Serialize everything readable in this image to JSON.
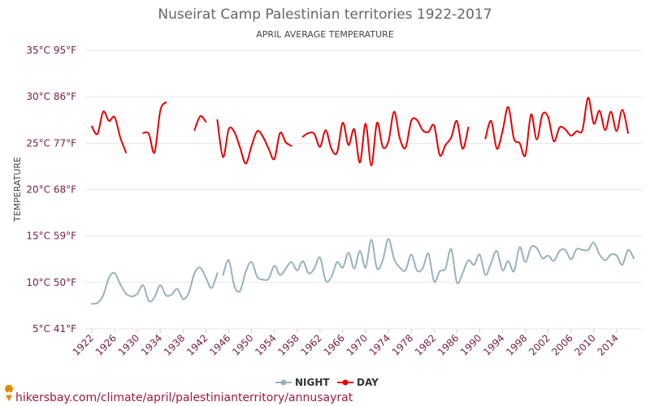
{
  "page": {
    "watermark": "hikersbay.com/climate/april/palestinianterritory/annusayrat"
  },
  "colors": {
    "day": "#e60000",
    "night": "#97b2bd",
    "grid": "#e6e6e6",
    "text": "#666666",
    "axis_label": "#7a2040",
    "watermark": "#a01a3c",
    "pin": "#e68a00"
  },
  "chart_data": {
    "type": "line",
    "title": "Nuseirat Camp Palestinian territories 1922-2017",
    "subtitle": "APRIL AVERAGE TEMPERATURE",
    "ylabel": "TEMPERATURE",
    "xlabel": "",
    "x_range": [
      1921,
      2018
    ],
    "ylim": [
      5,
      35
    ],
    "grid": true,
    "legend_position": "bottom-center",
    "y_ticks": [
      {
        "value": 5,
        "label": "5°C 41°F"
      },
      {
        "value": 10,
        "label": "10°C 50°F"
      },
      {
        "value": 15,
        "label": "15°C 59°F"
      },
      {
        "value": 20,
        "label": "20°C 68°F"
      },
      {
        "value": 25,
        "label": "25°C 77°F"
      },
      {
        "value": 30,
        "label": "30°C 86°F"
      },
      {
        "value": 35,
        "label": "35°C 95°F"
      }
    ],
    "x_ticks": [
      "1922",
      "1926",
      "1930",
      "1934",
      "1938",
      "1942",
      "1946",
      "1950",
      "1954",
      "1958",
      "1962",
      "1966",
      "1970",
      "1974",
      "1978",
      "1982",
      "1986",
      "1990",
      "1994",
      "1998",
      "2002",
      "2006",
      "2010",
      "2014"
    ],
    "x_tick_values": [
      1922,
      1926,
      1930,
      1934,
      1938,
      1942,
      1946,
      1950,
      1954,
      1958,
      1962,
      1966,
      1970,
      1974,
      1978,
      1982,
      1986,
      1990,
      1994,
      1998,
      2002,
      2006,
      2010,
      2014
    ],
    "series": [
      {
        "name": "NIGHT",
        "key": "night",
        "points": [
          [
            1922,
            7.7
          ],
          [
            1923,
            7.8
          ],
          [
            1924,
            8.6
          ],
          [
            1925,
            10.5
          ],
          [
            1926,
            11.0
          ],
          [
            1927,
            9.8
          ],
          [
            1928,
            8.8
          ],
          [
            1929,
            8.5
          ],
          [
            1930,
            8.8
          ],
          [
            1931,
            9.7
          ],
          [
            1932,
            8.0
          ],
          [
            1933,
            8.4
          ],
          [
            1934,
            9.7
          ],
          [
            1935,
            8.6
          ],
          [
            1936,
            8.7
          ],
          [
            1937,
            9.3
          ],
          [
            1938,
            8.2
          ],
          [
            1939,
            8.9
          ],
          [
            1940,
            11.0
          ],
          [
            1941,
            11.6
          ],
          [
            1942,
            10.5
          ],
          [
            1943,
            9.4
          ],
          [
            1944,
            11.0
          ],
          null,
          [
            1945,
            10.8
          ],
          [
            1946,
            12.4
          ],
          [
            1947,
            9.6
          ],
          [
            1948,
            9.1
          ],
          [
            1949,
            11.2
          ],
          [
            1950,
            12.2
          ],
          [
            1951,
            10.6
          ],
          [
            1952,
            10.3
          ],
          [
            1953,
            10.4
          ],
          [
            1954,
            11.8
          ],
          [
            1955,
            10.8
          ],
          [
            1956,
            11.5
          ],
          [
            1957,
            12.2
          ],
          [
            1958,
            11.3
          ],
          [
            1959,
            12.3
          ],
          [
            1960,
            11.0
          ],
          [
            1961,
            11.5
          ],
          [
            1962,
            12.7
          ],
          [
            1963,
            10.2
          ],
          [
            1964,
            10.6
          ],
          [
            1965,
            12.2
          ],
          [
            1966,
            11.6
          ],
          [
            1967,
            13.2
          ],
          [
            1968,
            11.5
          ],
          [
            1969,
            13.4
          ],
          [
            1970,
            11.6
          ],
          [
            1971,
            14.6
          ],
          [
            1972,
            11.5
          ],
          [
            1973,
            12.4
          ],
          [
            1974,
            14.7
          ],
          [
            1975,
            12.5
          ],
          [
            1976,
            11.6
          ],
          [
            1977,
            11.3
          ],
          [
            1978,
            13.0
          ],
          [
            1979,
            11.3
          ],
          [
            1980,
            11.5
          ],
          [
            1981,
            13.1
          ],
          [
            1982,
            10.1
          ],
          [
            1983,
            11.2
          ],
          [
            1984,
            11.5
          ],
          [
            1985,
            13.6
          ],
          [
            1986,
            10.0
          ],
          [
            1987,
            11.0
          ],
          [
            1988,
            12.4
          ],
          [
            1989,
            11.9
          ],
          [
            1990,
            13.0
          ],
          [
            1991,
            10.8
          ],
          [
            1992,
            12.1
          ],
          [
            1993,
            13.4
          ],
          [
            1994,
            11.3
          ],
          [
            1995,
            12.3
          ],
          [
            1996,
            11.2
          ],
          [
            1997,
            13.8
          ],
          [
            1998,
            12.2
          ],
          [
            1999,
            13.8
          ],
          [
            2000,
            13.7
          ],
          [
            2001,
            12.6
          ],
          [
            2002,
            12.9
          ],
          [
            2003,
            12.3
          ],
          [
            2004,
            13.4
          ],
          [
            2005,
            13.5
          ],
          [
            2006,
            12.5
          ],
          [
            2007,
            13.6
          ],
          [
            2008,
            13.5
          ],
          [
            2009,
            13.5
          ],
          [
            2010,
            14.3
          ],
          [
            2011,
            13.0
          ],
          [
            2012,
            12.4
          ],
          [
            2013,
            13.0
          ],
          [
            2014,
            12.9
          ],
          [
            2015,
            11.9
          ],
          [
            2016,
            13.5
          ],
          [
            2017,
            12.6
          ]
        ]
      },
      {
        "name": "DAY",
        "key": "day",
        "points": [
          [
            1922,
            26.8
          ],
          [
            1923,
            26.0
          ],
          [
            1924,
            28.4
          ],
          [
            1925,
            27.4
          ],
          [
            1926,
            27.8
          ],
          [
            1927,
            25.6
          ],
          [
            1928,
            24.0
          ],
          null,
          [
            1931,
            26.1
          ],
          [
            1932,
            26.0
          ],
          [
            1933,
            24.0
          ],
          [
            1934,
            28.5
          ],
          [
            1935,
            29.4
          ],
          null,
          [
            1940,
            26.4
          ],
          [
            1941,
            27.9
          ],
          [
            1942,
            27.3
          ],
          null,
          [
            1944,
            27.5
          ],
          [
            1945,
            23.5
          ],
          [
            1946,
            26.5
          ],
          [
            1947,
            26.2
          ],
          [
            1948,
            24.5
          ],
          [
            1949,
            22.8
          ],
          [
            1950,
            24.7
          ],
          [
            1951,
            26.3
          ],
          [
            1952,
            25.7
          ],
          [
            1953,
            24.4
          ],
          [
            1954,
            23.3
          ],
          [
            1955,
            26.1
          ],
          [
            1956,
            25.1
          ],
          [
            1957,
            24.7
          ],
          null,
          [
            1959,
            25.7
          ],
          [
            1960,
            26.1
          ],
          [
            1961,
            26.0
          ],
          [
            1962,
            24.6
          ],
          [
            1963,
            26.4
          ],
          [
            1964,
            24.4
          ],
          [
            1965,
            24.0
          ],
          [
            1966,
            27.2
          ],
          [
            1967,
            24.8
          ],
          [
            1968,
            26.5
          ],
          [
            1969,
            22.9
          ],
          [
            1970,
            27.1
          ],
          [
            1971,
            22.6
          ],
          [
            1972,
            27.2
          ],
          [
            1973,
            24.6
          ],
          [
            1974,
            25.2
          ],
          [
            1975,
            28.4
          ],
          [
            1976,
            25.5
          ],
          [
            1977,
            24.5
          ],
          [
            1978,
            27.4
          ],
          [
            1979,
            27.5
          ],
          [
            1980,
            26.4
          ],
          [
            1981,
            26.2
          ],
          [
            1982,
            26.9
          ],
          [
            1983,
            23.7
          ],
          [
            1984,
            24.8
          ],
          [
            1985,
            25.6
          ],
          [
            1986,
            27.4
          ],
          [
            1987,
            24.4
          ],
          [
            1988,
            26.7
          ],
          null,
          [
            1991,
            25.5
          ],
          [
            1992,
            27.4
          ],
          [
            1993,
            24.4
          ],
          [
            1994,
            26.3
          ],
          [
            1995,
            28.9
          ],
          [
            1996,
            25.5
          ],
          [
            1997,
            25.0
          ],
          [
            1998,
            23.7
          ],
          [
            1999,
            28.1
          ],
          [
            2000,
            25.4
          ],
          [
            2001,
            28.1
          ],
          [
            2002,
            27.8
          ],
          [
            2003,
            25.2
          ],
          [
            2004,
            26.7
          ],
          [
            2005,
            26.5
          ],
          [
            2006,
            25.8
          ],
          [
            2007,
            26.3
          ],
          [
            2008,
            26.4
          ],
          [
            2009,
            29.9
          ],
          [
            2010,
            27.1
          ],
          [
            2011,
            28.5
          ],
          [
            2012,
            26.4
          ],
          [
            2013,
            28.4
          ],
          [
            2014,
            26.3
          ],
          [
            2015,
            28.6
          ],
          [
            2016,
            26.1
          ]
        ]
      }
    ]
  }
}
